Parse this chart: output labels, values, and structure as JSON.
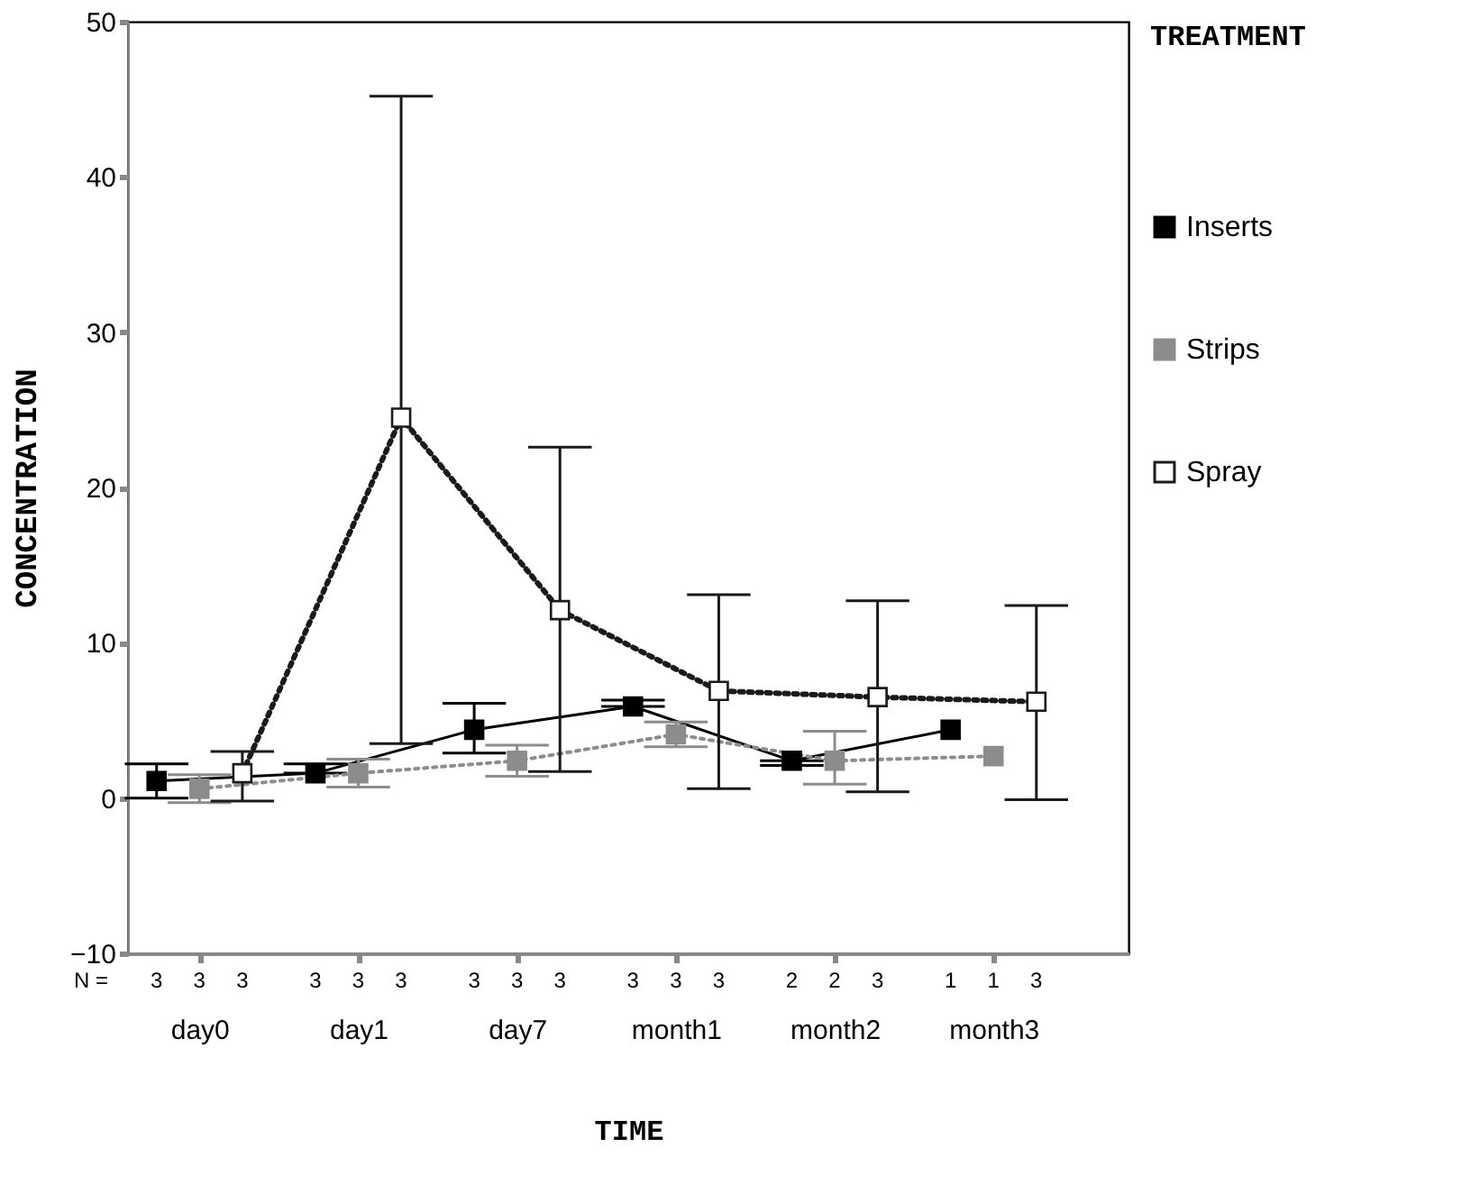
{
  "chart_data": {
    "type": "line",
    "xlabel": "TIME",
    "ylabel": "CONCENTRATION",
    "legend_title": "TREATMENT",
    "legend": "right",
    "marker": "square",
    "grid": false,
    "categories": [
      "day0",
      "day1",
      "day7",
      "month1",
      "month2",
      "month3"
    ],
    "ylim": [
      -10,
      50
    ],
    "yticks": [
      -10,
      0,
      10,
      20,
      30,
      40,
      50
    ],
    "annotations": [
      "N =",
      "3",
      "3",
      "3",
      "3",
      "3",
      "3",
      "3",
      "3",
      "3",
      "3",
      "3",
      "3",
      "2",
      "2",
      "3",
      "1",
      "1",
      "3"
    ],
    "series": [
      {
        "name": "Inserts",
        "color": "#000000",
        "line_style": "solid",
        "values": [
          1.1,
          1.6,
          4.4,
          5.9,
          2.4,
          4.4
        ],
        "errors": [
          [
            0.0,
            2.2
          ],
          [
            1.6,
            2.2
          ],
          [
            2.9,
            6.1
          ],
          [
            5.9,
            6.3
          ],
          [
            2.1,
            2.4
          ],
          null
        ]
      },
      {
        "name": "Strips",
        "color": "#8c8c8c",
        "line_style": "dotted",
        "values": [
          0.6,
          1.6,
          2.4,
          4.1,
          2.4,
          2.7
        ],
        "errors": [
          [
            -0.3,
            1.5
          ],
          [
            0.7,
            2.5
          ],
          [
            1.4,
            3.4
          ],
          [
            3.3,
            4.9
          ],
          [
            0.9,
            4.3
          ],
          null
        ]
      },
      {
        "name": "Spray",
        "color": "#1a1a1a",
        "colors": [
          "#ffffff",
          "#ffffff",
          "#ffffff",
          "#ffffff",
          "#ffffff",
          "#ffffff"
        ],
        "line_style": "dotted",
        "values": [
          1.6,
          24.5,
          12.1,
          6.9,
          6.5,
          6.2
        ],
        "errors": [
          [
            -0.2,
            3.0
          ],
          [
            3.5,
            45.2
          ],
          [
            1.7,
            22.6
          ],
          [
            0.6,
            13.1
          ],
          [
            0.4,
            12.7
          ],
          [
            -0.1,
            12.4
          ]
        ]
      }
    ]
  }
}
